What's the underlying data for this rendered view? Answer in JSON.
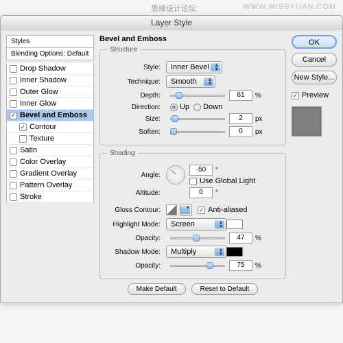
{
  "watermark": "WWW.MISSYUAN.COM",
  "watermark2": "思缘设计论坛",
  "title": "Layer Style",
  "sidebar": {
    "header": "Styles",
    "subheader": "Blending Options: Default",
    "items": [
      {
        "label": "Drop Shadow",
        "checked": false,
        "selected": false,
        "indent": false,
        "bold": false
      },
      {
        "label": "Inner Shadow",
        "checked": false,
        "selected": false,
        "indent": false,
        "bold": false
      },
      {
        "label": "Outer Glow",
        "checked": false,
        "selected": false,
        "indent": false,
        "bold": false
      },
      {
        "label": "Inner Glow",
        "checked": false,
        "selected": false,
        "indent": false,
        "bold": false
      },
      {
        "label": "Bevel and Emboss",
        "checked": true,
        "selected": true,
        "indent": false,
        "bold": true
      },
      {
        "label": "Contour",
        "checked": true,
        "selected": false,
        "indent": true,
        "bold": false
      },
      {
        "label": "Texture",
        "checked": false,
        "selected": false,
        "indent": true,
        "bold": false
      },
      {
        "label": "Satin",
        "checked": false,
        "selected": false,
        "indent": false,
        "bold": false
      },
      {
        "label": "Color Overlay",
        "checked": false,
        "selected": false,
        "indent": false,
        "bold": false
      },
      {
        "label": "Gradient Overlay",
        "checked": false,
        "selected": false,
        "indent": false,
        "bold": false
      },
      {
        "label": "Pattern Overlay",
        "checked": false,
        "selected": false,
        "indent": false,
        "bold": false
      },
      {
        "label": "Stroke",
        "checked": false,
        "selected": false,
        "indent": false,
        "bold": false
      }
    ]
  },
  "main": {
    "title": "Bevel and Emboss",
    "structure": {
      "legend": "Structure",
      "style_lbl": "Style:",
      "style_val": "Inner Bevel",
      "technique_lbl": "Technique:",
      "technique_val": "Smooth",
      "depth_lbl": "Depth:",
      "depth_val": "61",
      "depth_unit": "%",
      "depth_pct": 12,
      "direction_lbl": "Direction:",
      "up": "Up",
      "down": "Down",
      "size_lbl": "Size:",
      "size_val": "2",
      "size_unit": "px",
      "size_pct": 3,
      "soften_lbl": "Soften:",
      "soften_val": "0",
      "soften_unit": "px",
      "soften_pct": 0
    },
    "shading": {
      "legend": "Shading",
      "angle_lbl": "Angle:",
      "angle_val": "-50",
      "angle_unit": "°",
      "global_lbl": "Use Global Light",
      "altitude_lbl": "Altitude:",
      "altitude_val": "0",
      "altitude_unit": "°",
      "gloss_lbl": "Gloss Contour:",
      "anti_lbl": "Anti-aliased",
      "hmode_lbl": "Highlight Mode:",
      "hmode_val": "Screen",
      "hcolor": "#ffffff",
      "hop_lbl": "Opacity:",
      "hop_val": "47",
      "hop_unit": "%",
      "hop_pct": 47,
      "smode_lbl": "Shadow Mode:",
      "smode_val": "Multiply",
      "scolor": "#000000",
      "sop_lbl": "Opacity:",
      "sop_val": "75",
      "sop_unit": "%",
      "sop_pct": 75
    },
    "make_default": "Make Default",
    "reset_default": "Reset to Default"
  },
  "right": {
    "ok": "OK",
    "cancel": "Cancel",
    "newstyle": "New Style...",
    "preview": "Preview"
  }
}
